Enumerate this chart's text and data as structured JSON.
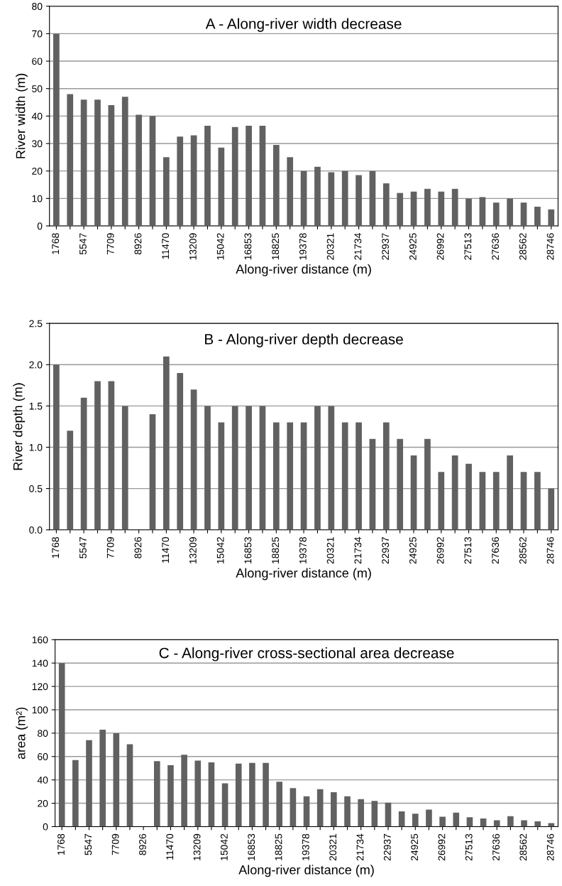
{
  "chart_data": [
    {
      "type": "bar",
      "title": "A - Along-river width decrease",
      "xlabel": "Along-river distance (m)",
      "ylabel": "River width (m)",
      "categories": [
        "1768",
        null,
        "5547",
        null,
        "7709",
        null,
        "8926",
        null,
        "11470",
        null,
        "13209",
        null,
        "15042",
        null,
        "16853",
        null,
        "18825",
        null,
        "19378",
        null,
        "20321",
        null,
        "21734",
        null,
        "22937",
        null,
        "24925",
        null,
        "26992",
        null,
        "27513",
        null,
        "27636",
        null,
        "28562",
        null,
        "28746"
      ],
      "values": [
        70,
        48,
        46,
        46,
        44,
        47,
        40.5,
        40,
        25,
        32.5,
        33,
        36.5,
        28.5,
        36,
        36.5,
        36.5,
        29.5,
        25,
        20,
        21.5,
        19.5,
        20,
        18.5,
        20,
        15.5,
        12,
        12.5,
        13.5,
        12.5,
        13.5,
        10,
        10.5,
        8.5,
        10,
        8.5,
        7,
        6
      ],
      "color": "#616161",
      "ylim": [
        0,
        80
      ],
      "yticks": [
        0,
        10,
        20,
        30,
        40,
        50,
        60,
        70,
        80
      ],
      "grid": "y"
    },
    {
      "type": "bar",
      "title": "B - Along-river depth decrease",
      "xlabel": "Along-river distance (m)",
      "ylabel": "River depth (m)",
      "categories": [
        "1768",
        null,
        "5547",
        null,
        "7709",
        null,
        "8926",
        null,
        "11470",
        null,
        "13209",
        null,
        "15042",
        null,
        "16853",
        null,
        "18825",
        null,
        "19378",
        null,
        "20321",
        null,
        "21734",
        null,
        "22937",
        null,
        "24925",
        null,
        "26992",
        null,
        "27513",
        null,
        "27636",
        null,
        "28562",
        null,
        "28746"
      ],
      "values": [
        2.0,
        1.2,
        1.6,
        1.8,
        1.8,
        1.5,
        null,
        1.4,
        2.1,
        1.9,
        1.7,
        1.5,
        1.3,
        1.5,
        1.5,
        1.5,
        1.3,
        1.3,
        1.3,
        1.5,
        1.5,
        1.3,
        1.3,
        1.1,
        1.3,
        1.1,
        0.9,
        1.1,
        0.7,
        0.9,
        0.8,
        0.7,
        0.7,
        0.9,
        0.7,
        0.7,
        0.5
      ],
      "color": "#616161",
      "ylim": [
        0,
        2.5
      ],
      "yticks": [
        {
          "value": 0,
          "label": "0.0"
        },
        {
          "value": 0.5,
          "label": "0.5"
        },
        {
          "value": 1,
          "label": "1.0"
        },
        {
          "value": 1.5,
          "label": "1.5"
        },
        {
          "value": 2,
          "label": "2.0"
        },
        {
          "value": 2.5,
          "label": "2.5"
        }
      ],
      "grid": "y"
    },
    {
      "type": "bar",
      "title": "C - Along-river cross-sectional area decrease",
      "xlabel": "Along-river distance (m)",
      "ylabel": "area (m²)",
      "categories": [
        "1768",
        null,
        "5547",
        null,
        "7709",
        null,
        "8926",
        null,
        "11470",
        null,
        "13209",
        null,
        "15042",
        null,
        "16853",
        null,
        "18825",
        null,
        "19378",
        null,
        "20321",
        null,
        "21734",
        null,
        "22937",
        null,
        "24925",
        null,
        "26992",
        null,
        "27513",
        null,
        "27636",
        null,
        "28562",
        null,
        "28746"
      ],
      "values": [
        140,
        57,
        74,
        83,
        80,
        70.5,
        null,
        56,
        52.5,
        61.5,
        56.5,
        55,
        37,
        54,
        54.5,
        54.5,
        38.5,
        33,
        26,
        32,
        29.5,
        26,
        23.5,
        22,
        20.5,
        13,
        11,
        14.5,
        8.5,
        12,
        8,
        7,
        5.5,
        9,
        5.5,
        4.5,
        3
      ],
      "color": "#616161",
      "ylim": [
        0,
        160
      ],
      "yticks": [
        0,
        20,
        40,
        60,
        80,
        100,
        120,
        140,
        160
      ],
      "grid": "y"
    }
  ]
}
